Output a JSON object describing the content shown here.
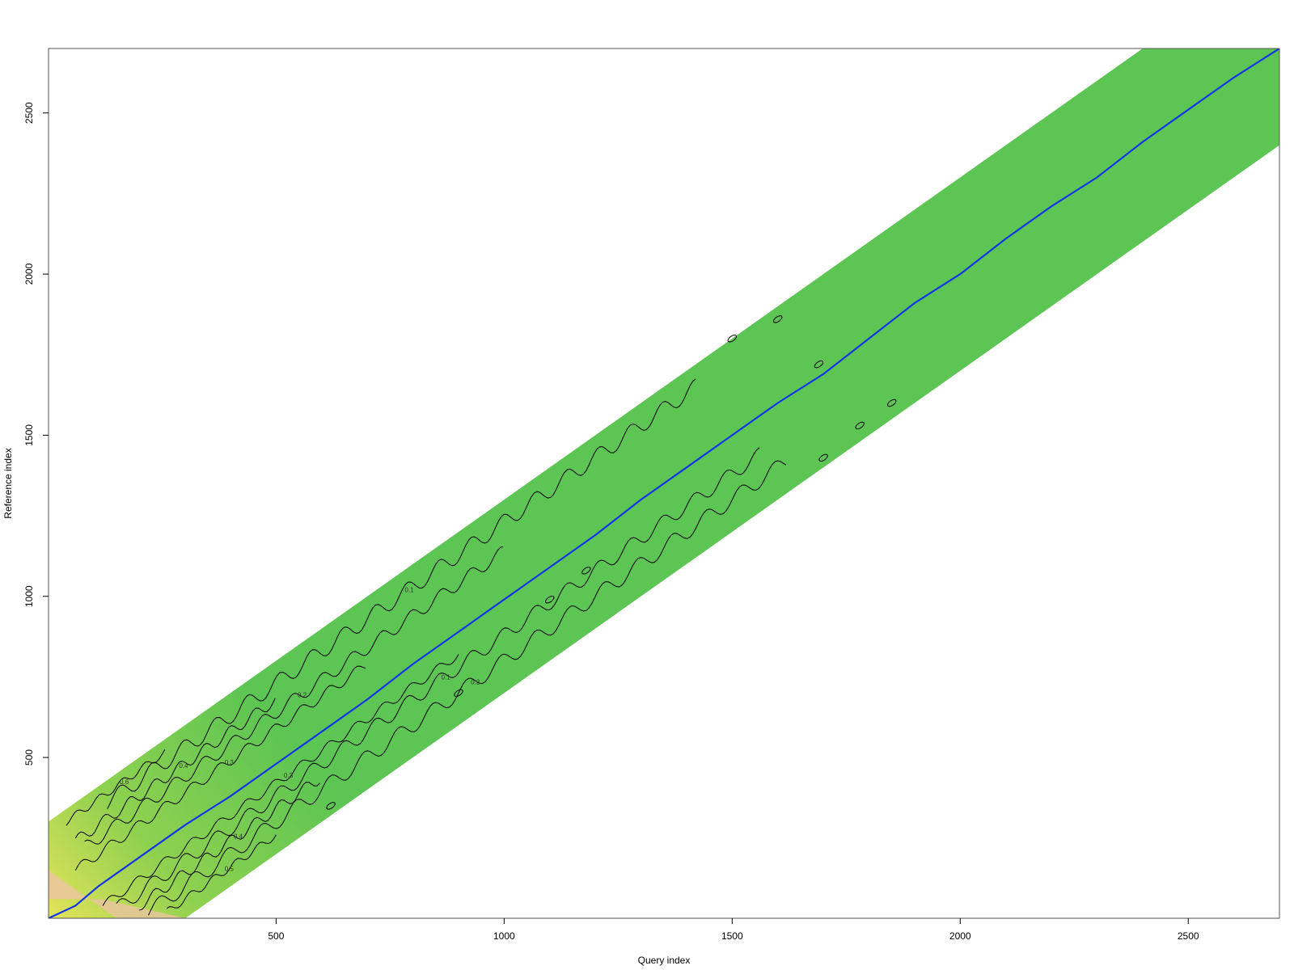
{
  "chart_data": {
    "type": "heatmap",
    "title": "",
    "xlabel": "Query index",
    "ylabel": "Reference index",
    "xlim": [
      1,
      2700
    ],
    "ylim": [
      1,
      2700
    ],
    "xticks": [
      500,
      1000,
      1500,
      2000,
      2500
    ],
    "yticks": [
      500,
      1000,
      1500,
      2000,
      2500
    ],
    "grid": false,
    "legend": "none",
    "band_window": 300,
    "colors": {
      "band_low": "#5cc553",
      "band_mid": "#8fd14f",
      "band_high": "#e4e35a",
      "corner": "#eec3a6",
      "path": "#1436e6",
      "contour": "#000000"
    },
    "contour_levels": [
      "0.1",
      "0.2",
      "0.3",
      "0.4",
      "0.5",
      "0.6",
      "0.7",
      "0.8"
    ],
    "path": {
      "name": "",
      "x": [
        1,
        60,
        110,
        200,
        300,
        400,
        500,
        600,
        700,
        800,
        900,
        1000,
        1100,
        1200,
        1300,
        1400,
        1500,
        1600,
        1700,
        1800,
        1900,
        2000,
        2100,
        2200,
        2300,
        2400,
        2500,
        2600,
        2700
      ],
      "y": [
        1,
        40,
        100,
        190,
        290,
        380,
        480,
        580,
        680,
        790,
        890,
        990,
        1090,
        1190,
        1300,
        1400,
        1500,
        1600,
        1690,
        1800,
        1910,
        2000,
        2110,
        2210,
        2300,
        2410,
        2510,
        2610,
        2700
      ]
    }
  }
}
